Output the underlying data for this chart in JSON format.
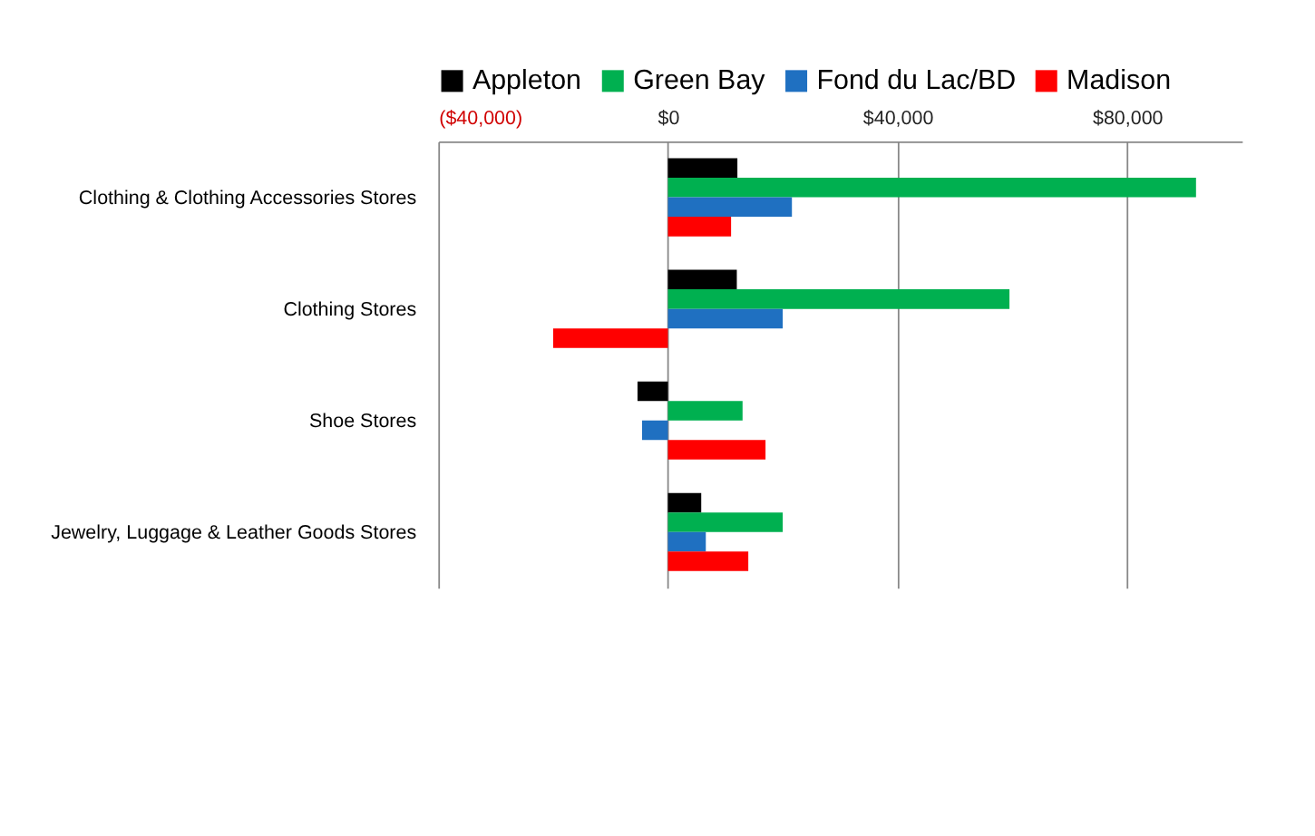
{
  "chart_data": {
    "type": "bar",
    "orientation": "horizontal",
    "categories": [
      "Clothing & Clothing Accessories Stores",
      "Clothing Stores",
      "Shoe Stores",
      "Jewelry, Luggage & Leather Goods Stores"
    ],
    "series": [
      {
        "name": "Appleton",
        "color": "#000000",
        "values": [
          12100,
          12000,
          -5300,
          5800
        ]
      },
      {
        "name": "Green Bay",
        "color": "#00b050",
        "values": [
          92000,
          59500,
          13000,
          20000
        ]
      },
      {
        "name": "Fond du Lac/BD",
        "color": "#1f70c1",
        "values": [
          21600,
          20000,
          -4500,
          6600
        ]
      },
      {
        "name": "Madison",
        "color": "#ff0000",
        "values": [
          11000,
          -20000,
          17000,
          14000
        ]
      }
    ],
    "xlim": [
      -40000,
      100000
    ],
    "xticks": [
      {
        "value": -40000,
        "label": "($40,000)"
      },
      {
        "value": 0,
        "label": "$0"
      },
      {
        "value": 40000,
        "label": "$40,000"
      },
      {
        "value": 80000,
        "label": "$80,000"
      }
    ],
    "grid": "x",
    "legend": "top left"
  }
}
